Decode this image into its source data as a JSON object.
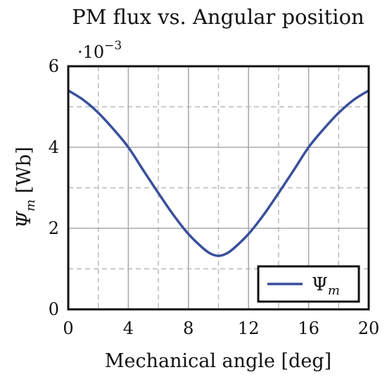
{
  "chart_data": {
    "type": "line",
    "title": "PM flux vs. Angular position",
    "scale_label": "·10",
    "scale_exponent": "−3",
    "xlabel": "Mechanical angle [deg]",
    "ylabel": "Ψ",
    "ylabel_sub": "m",
    "ylabel_unit": "[Wb]",
    "xlim": [
      0,
      20
    ],
    "ylim": [
      0,
      6
    ],
    "x_ticks": [
      "0",
      "4",
      "8",
      "12",
      "16",
      "20"
    ],
    "y_ticks": [
      "0",
      "2",
      "4",
      "6"
    ],
    "x_tick_values": [
      0,
      4,
      8,
      12,
      16,
      20
    ],
    "y_tick_values": [
      0,
      2,
      4,
      6
    ],
    "grid": true,
    "legend_position": "bottom-right",
    "series": [
      {
        "name": "Ψ",
        "name_sub": "m",
        "color": "#3a4f9c",
        "x": [
          0,
          1,
          2,
          3,
          4,
          5,
          6,
          7,
          8,
          9,
          9.5,
          10,
          10.5,
          11,
          12,
          13,
          14,
          15,
          16,
          17,
          18,
          19,
          20
        ],
        "y": [
          5.4,
          5.17,
          4.85,
          4.45,
          4.0,
          3.43,
          2.87,
          2.33,
          1.86,
          1.5,
          1.37,
          1.32,
          1.37,
          1.5,
          1.86,
          2.33,
          2.87,
          3.43,
          4.0,
          4.45,
          4.85,
          5.17,
          5.4
        ]
      }
    ]
  }
}
